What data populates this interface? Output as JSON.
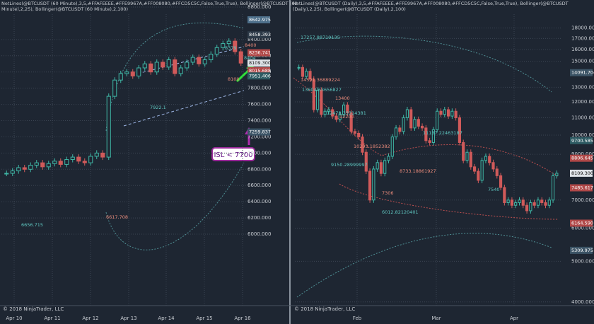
{
  "watermark": "© 2018 NinjaTrader, LLC",
  "chart_data": [
    {
      "type": "candlestick",
      "title": "NetLines(@BTCUSDT (60 Minute),3,5,#FFAFEEEE,#FFE9967A,#FF008080,#FFCD5C5C,False,True,True), Bollinger(@BTCUSDT (60 Minute),2,25), Bollinger(@BTCUSDT (60 Minute),2,100)",
      "x_labels": [
        "Apr 10",
        "Apr 11",
        "Apr 12",
        "Apr 13",
        "Apr 14",
        "Apr 15",
        "Apr 16"
      ],
      "closes": [
        6750,
        6780,
        6820,
        6800,
        6850,
        6880,
        6830,
        6870,
        6900,
        6860,
        6920,
        6950,
        6900,
        6880,
        6960,
        7000,
        6950,
        7700,
        7900,
        7980,
        8000,
        7950,
        8050,
        8100,
        8000,
        8120,
        8060,
        8150,
        7980,
        8050,
        8120,
        8180,
        8100,
        8150,
        8220,
        8300,
        8350,
        8380,
        8250,
        8109.3
      ],
      "ylim": [
        6000,
        8800
      ],
      "yticks": [
        {
          "value": 6000,
          "label": "6000.000"
        },
        {
          "value": 6200,
          "label": "6200.000"
        },
        {
          "value": 6400,
          "label": "6400.000"
        },
        {
          "value": 6600,
          "label": "6600.000"
        },
        {
          "value": 6800,
          "label": "6800.000"
        },
        {
          "value": 7000,
          "label": "7000.000"
        },
        {
          "value": 7200,
          "label": "7200.000"
        },
        {
          "value": 7400,
          "label": "7400.000"
        },
        {
          "value": 7600,
          "label": "7600.000"
        },
        {
          "value": 7800,
          "label": "7800.000"
        },
        {
          "value": 8000,
          "label": "8000.000"
        },
        {
          "value": 8200,
          "label": "8200.000"
        },
        {
          "value": 8400,
          "label": "8400.000"
        },
        {
          "value": 8800,
          "label": "8800.000"
        }
      ],
      "price_tags": [
        {
          "value": 8642.975,
          "label": "8642.975",
          "color": "#4d6f8a"
        },
        {
          "value": 8458.393,
          "label": "8458.393",
          "color": "#2d3a48"
        },
        {
          "value": 8236.741,
          "label": "8236.741",
          "color": "#b04848"
        },
        {
          "value": 8109.3,
          "label": "8109.300",
          "color": "#dfe3e8"
        },
        {
          "value": 8015.688,
          "label": "8015.688",
          "color": "#b04848"
        },
        {
          "value": 7951.406,
          "label": "7951.406",
          "color": "#2e5b63"
        },
        {
          "value": 7259.837,
          "label": "7259.837",
          "color": "#3c5466"
        }
      ],
      "annotations": [
        "8379",
        "8400",
        "8404",
        "8100",
        "7922.1",
        "6617.708",
        "6656.715",
        "ISL < 7700"
      ]
    },
    {
      "type": "candlestick",
      "title": "NetLines(@BTCUSDT (Daily),3,5,#FFAFEEEE,#FFE9967A,#FF008080,#FFCD5C5C,False,True,True), Bollinger(@BTCUSDT (Daily),2,25), Bollinger(@BTCUSDT (Daily),2,100)",
      "x_labels": [
        "Feb",
        "Mar",
        "Apr"
      ],
      "closes": [
        14500,
        13800,
        14200,
        13600,
        11500,
        12800,
        11200,
        11400,
        11500,
        11100,
        10900,
        11200,
        11800,
        11300,
        10200,
        10100,
        9900,
        9100,
        8200,
        7000,
        8300,
        8600,
        8100,
        8700,
        8900,
        9900,
        10400,
        10200,
        11000,
        11500,
        10400,
        10900,
        10500,
        10400,
        9700,
        9600,
        10300,
        11400,
        11200,
        11500,
        11100,
        11400,
        11000,
        9600,
        8700,
        9100,
        8400,
        8200,
        7800,
        8700,
        8900,
        8600,
        8300,
        8000,
        7500,
        6900,
        7000,
        6800,
        6900,
        7000,
        6800,
        6600,
        6900,
        6800,
        7000,
        6900,
        6800,
        7000,
        8000,
        8109.3
      ],
      "log_scale": true,
      "ylim": [
        3800,
        21000
      ],
      "yticks": [
        {
          "value": 4000,
          "label": "4000.000"
        },
        {
          "value": 5000,
          "label": "5000.000"
        },
        {
          "value": 6000,
          "label": "6000.000"
        },
        {
          "value": 7000,
          "label": "7000.000"
        },
        {
          "value": 9000,
          "label": "9000.000"
        },
        {
          "value": 10000,
          "label": "10000.000"
        },
        {
          "value": 11000,
          "label": "11000.000"
        },
        {
          "value": 12000,
          "label": "12000.000"
        },
        {
          "value": 13000,
          "label": "13000.000"
        },
        {
          "value": 15000,
          "label": "15000.000"
        },
        {
          "value": 16000,
          "label": "16000.000"
        },
        {
          "value": 17000,
          "label": "17000.000"
        },
        {
          "value": 18000,
          "label": "18000.000"
        }
      ],
      "price_tags": [
        {
          "value": 14091.704,
          "label": "14091.704",
          "color": "#3c5466"
        },
        {
          "value": 9700.585,
          "label": "9700.585",
          "color": "#2e5b63"
        },
        {
          "value": 8806.645,
          "label": "8806.645",
          "color": "#b04848"
        },
        {
          "value": 8109.3,
          "label": "8109.300",
          "color": "#dfe3e8"
        },
        {
          "value": 7485.617,
          "label": "7485.617",
          "color": "#b04848"
        },
        {
          "value": 6164.59,
          "label": "6164.590",
          "color": "#b04848"
        },
        {
          "value": 5309.975,
          "label": "5309.975",
          "color": "#3c5466"
        }
      ],
      "annotations": [
        "17257.88719135",
        "14591.36889224",
        "13604.63656827",
        "13400",
        "12478.33314381",
        "12200",
        "11137.22463187",
        "10293.1852382",
        "9150.28999997",
        "8733.18861927",
        "7540",
        "7306",
        "6012.82120401"
      ]
    }
  ]
}
